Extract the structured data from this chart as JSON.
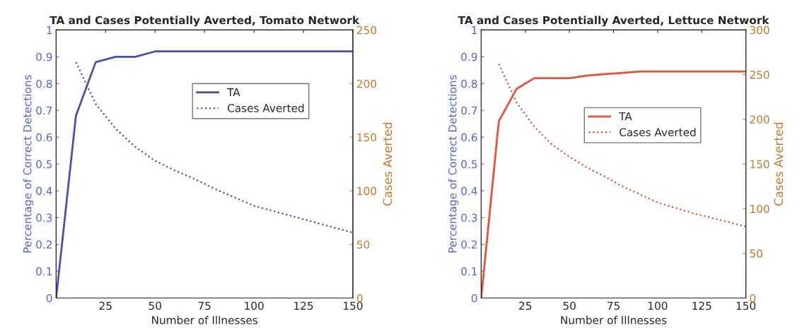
{
  "chart_data": [
    {
      "type": "line",
      "title": "TA and Cases Potentially Averted, Tomato Network",
      "xlabel": "Number of Illnesses",
      "ylabel": "Percentage of Correct Detections",
      "y2label": "Cases Averted",
      "xlim": [
        0,
        150
      ],
      "xticks": [
        25,
        50,
        75,
        100,
        125,
        150
      ],
      "ylim": [
        0,
        1
      ],
      "yticks": [
        0,
        0.1,
        0.2,
        0.3,
        0.4,
        0.5,
        0.6,
        0.7,
        0.8,
        0.9,
        1
      ],
      "y2lim": [
        0,
        250
      ],
      "y2ticks": [
        0,
        50,
        100,
        150,
        200,
        250
      ],
      "legend": "top right",
      "grid": false,
      "series": [
        {
          "name": "TA",
          "color": "#4b4fb5",
          "line_style": "solid",
          "x": [
            0,
            10,
            20,
            30,
            40,
            50,
            60,
            70,
            80,
            90,
            100,
            110,
            120,
            130,
            140,
            150
          ],
          "values": [
            0,
            0.68,
            0.88,
            0.9,
            0.9,
            0.92,
            0.92,
            0.92,
            0.92,
            0.92,
            0.92,
            0.92,
            0.92,
            0.92,
            0.92,
            0.92
          ]
        },
        {
          "name": "Cases Averted",
          "color": "#4b4fb5",
          "line_style": "dotted",
          "axis": "y2",
          "x": [
            10,
            20,
            30,
            40,
            50,
            60,
            70,
            80,
            90,
            100,
            110,
            120,
            130,
            140,
            150
          ],
          "values": [
            220,
            181,
            158,
            141,
            128,
            119,
            111,
            102,
            94,
            86,
            81,
            76,
            71,
            66,
            61
          ]
        }
      ]
    },
    {
      "type": "line",
      "title": "TA and Cases Potentially Averted, Lettuce Network",
      "xlabel": "Number of Illnesses",
      "ylabel": "Percentage of Correct Detections",
      "y2label": "Cases Averted",
      "xlim": [
        0,
        150
      ],
      "xticks": [
        25,
        50,
        75,
        100,
        125,
        150
      ],
      "ylim": [
        0,
        1
      ],
      "yticks": [
        0,
        0.1,
        0.2,
        0.3,
        0.4,
        0.5,
        0.6,
        0.7,
        0.8,
        0.9,
        1
      ],
      "y2lim": [
        0,
        300
      ],
      "y2ticks": [
        0,
        50,
        100,
        150,
        200,
        250,
        300
      ],
      "legend": "top right",
      "grid": false,
      "series": [
        {
          "name": "TA",
          "color": "#e8503a",
          "line_style": "solid",
          "x": [
            0,
            10,
            20,
            30,
            40,
            50,
            60,
            70,
            80,
            90,
            100,
            110,
            120,
            130,
            140,
            150
          ],
          "values": [
            0,
            0.66,
            0.78,
            0.82,
            0.82,
            0.82,
            0.83,
            0.835,
            0.84,
            0.845,
            0.845,
            0.845,
            0.845,
            0.845,
            0.845,
            0.845
          ]
        },
        {
          "name": "Cases Averted",
          "color": "#e8503a",
          "line_style": "dotted",
          "axis": "y2",
          "x": [
            10,
            20,
            30,
            40,
            50,
            60,
            70,
            80,
            90,
            100,
            110,
            120,
            130,
            140,
            150
          ],
          "values": [
            262,
            219,
            192,
            172,
            158,
            146,
            136,
            125,
            116,
            107,
            101,
            95,
            90,
            85,
            80
          ]
        }
      ]
    }
  ]
}
